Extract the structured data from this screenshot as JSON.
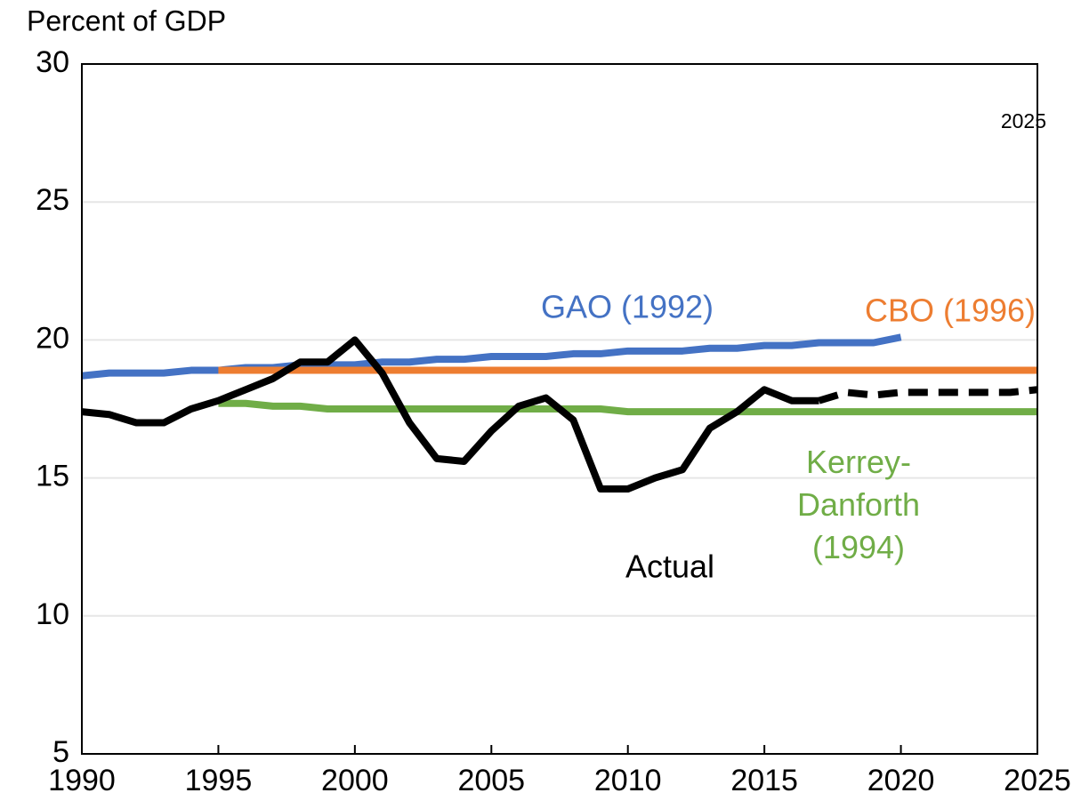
{
  "chart_data": {
    "type": "line",
    "y_label": "Percent of GDP",
    "annotation": "2025",
    "x": [
      1990,
      1991,
      1992,
      1993,
      1994,
      1995,
      1996,
      1997,
      1998,
      1999,
      2000,
      2001,
      2002,
      2003,
      2004,
      2005,
      2006,
      2007,
      2008,
      2009,
      2010,
      2011,
      2012,
      2013,
      2014,
      2015,
      2016,
      2017,
      2018,
      2019,
      2020,
      2021,
      2022,
      2023,
      2024,
      2025
    ],
    "series": [
      {
        "name": "Actual",
        "color": "#000000",
        "dash": false,
        "values": [
          17.4,
          17.3,
          17.0,
          17.0,
          17.5,
          17.8,
          18.2,
          18.6,
          19.2,
          19.2,
          20.0,
          18.8,
          17.0,
          15.7,
          15.6,
          16.7,
          17.6,
          17.9,
          17.1,
          14.6,
          14.6,
          15.0,
          15.3,
          16.8,
          17.4,
          18.2,
          17.8,
          17.8,
          null,
          null,
          null,
          null,
          null,
          null,
          null,
          null
        ]
      },
      {
        "color": "#000000",
        "dash": true,
        "values": [
          null,
          null,
          null,
          null,
          null,
          null,
          null,
          null,
          null,
          null,
          null,
          null,
          null,
          null,
          null,
          null,
          null,
          null,
          null,
          null,
          null,
          null,
          null,
          null,
          null,
          null,
          null,
          17.8,
          18.1,
          18.0,
          18.1,
          18.1,
          18.1,
          18.1,
          18.1,
          18.2
        ]
      },
      {
        "name": "GAO (1992)",
        "color": "#4472c4",
        "dash": false,
        "values": [
          18.7,
          18.8,
          18.8,
          18.8,
          18.9,
          18.9,
          19.0,
          19.0,
          19.1,
          19.1,
          19.1,
          19.2,
          19.2,
          19.3,
          19.3,
          19.4,
          19.4,
          19.4,
          19.5,
          19.5,
          19.6,
          19.6,
          19.6,
          19.7,
          19.7,
          19.8,
          19.8,
          19.9,
          19.9,
          19.9,
          20.1,
          null,
          null,
          null,
          null,
          null
        ]
      },
      {
        "name": "CBO (1996)",
        "color": "#ed7d31",
        "dash": false,
        "values": [
          null,
          null,
          null,
          null,
          null,
          18.9,
          18.9,
          18.9,
          18.9,
          18.9,
          18.9,
          18.9,
          18.9,
          18.9,
          18.9,
          18.9,
          18.9,
          18.9,
          18.9,
          18.9,
          18.9,
          18.9,
          18.9,
          18.9,
          18.9,
          18.9,
          18.9,
          18.9,
          18.9,
          18.9,
          18.9,
          18.9,
          18.9,
          18.9,
          18.9,
          18.9
        ]
      },
      {
        "name": "Kerrey-\nDanforth\n(1994)",
        "color": "#70ad47",
        "dash": false,
        "values": [
          null,
          null,
          null,
          null,
          null,
          17.7,
          17.7,
          17.6,
          17.6,
          17.5,
          17.5,
          17.5,
          17.5,
          17.5,
          17.5,
          17.5,
          17.5,
          17.5,
          17.5,
          17.5,
          17.4,
          17.4,
          17.4,
          17.4,
          17.4,
          17.4,
          17.4,
          17.4,
          17.4,
          17.4,
          17.4,
          17.4,
          17.4,
          17.4,
          17.4,
          17.4
        ]
      }
    ],
    "xlim": [
      1990,
      2025
    ],
    "xticks": [
      1990,
      1995,
      2000,
      2005,
      2010,
      2015,
      2020,
      2025
    ],
    "ylim": [
      5,
      30
    ],
    "yticks": [
      5,
      10,
      15,
      20,
      25,
      30
    ],
    "grid": true
  }
}
